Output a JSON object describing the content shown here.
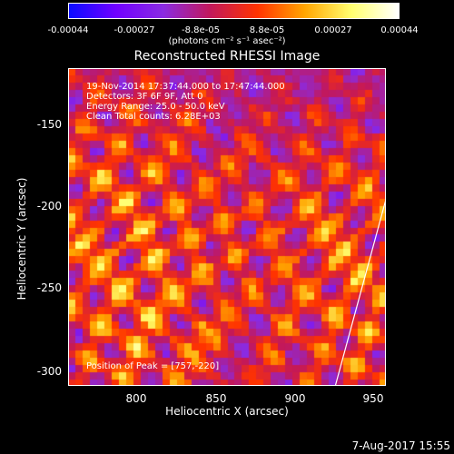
{
  "colorbar": {
    "ticks": [
      "-0.00044",
      "-0.00027",
      "-8.8e-05",
      "8.8e-05",
      "0.00027",
      "0.00044"
    ],
    "units": "(photons cm⁻² s⁻¹ asec⁻²)",
    "colors": [
      "#0a0aff",
      "#7000ff",
      "#8a2be2",
      "#c2185b",
      "#ff3300",
      "#ffa500",
      "#ffff70",
      "#ffffff"
    ]
  },
  "title": "Reconstructed RHESSI Image",
  "info": {
    "time": "19-Nov-2014 17:37:44.000 to 17:47:44.000",
    "detectors": "Detectors: 3F 6F 9F, Att 0",
    "energy": "Energy Range: 25.0 - 50.0 keV",
    "clean": "Clean    Total counts: 6.28E+03",
    "peak": "Position of Peak = [757,-220]"
  },
  "axes": {
    "xlabel": "Heliocentric X (arcsec)",
    "ylabel": "Heliocentric Y (arcsec)",
    "xticks": [
      "800",
      "850",
      "900",
      "950"
    ],
    "yticks": [
      "-150",
      "-200",
      "-250",
      "-300"
    ]
  },
  "footer": "7-Aug-2017 15:55"
}
